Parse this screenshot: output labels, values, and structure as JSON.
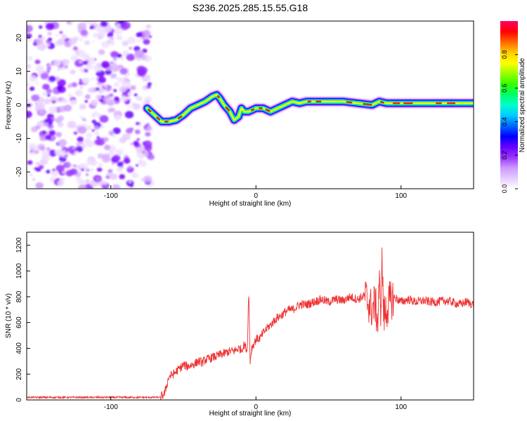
{
  "title": "S236.2025.285.15.55.G18",
  "chart_data": [
    {
      "type": "heatmap",
      "xlabel": "Height of straight line (km)",
      "ylabel": "Frequency (Hz)",
      "xlim": [
        -158,
        150
      ],
      "ylim": [
        -25,
        25
      ],
      "xticks": [
        -100,
        0,
        100
      ],
      "yticks": [
        -20,
        -10,
        0,
        10,
        20
      ],
      "colorbar": {
        "label": "Normalized spectral amplitude",
        "range": [
          0,
          1
        ],
        "ticks": [
          "0.0",
          "0.2",
          "0.4",
          "0.6",
          "0.8"
        ],
        "colors": [
          "#ffffff",
          "#e6ccff",
          "#cc99ff",
          "#9933ff",
          "#6600ff",
          "#0000ff",
          "#0066ff",
          "#00ccff",
          "#00ffcc",
          "#00ff66",
          "#33ff00",
          "#99ff00",
          "#ffff00",
          "#ffcc00",
          "#ff6600",
          "#ff0000",
          "#ff0066"
        ]
      },
      "ridge": {
        "x": [
          -75,
          -70,
          -65,
          -60,
          -55,
          -50,
          -45,
          -40,
          -35,
          -30,
          -27,
          -25,
          -22,
          -18,
          -15,
          -12,
          -10,
          -8,
          -5,
          0,
          5,
          10,
          15,
          20,
          25,
          30,
          35,
          40,
          45,
          50,
          60,
          70,
          80,
          85,
          90,
          100,
          110,
          120,
          130,
          140,
          150
        ],
        "y": [
          -1,
          -3,
          -5,
          -5,
          -4.5,
          -3,
          -1,
          0,
          1,
          2.5,
          3,
          2,
          0,
          -2,
          -4.5,
          -3.5,
          -1,
          -2,
          -2,
          -1,
          -1,
          -2,
          -1,
          0,
          1,
          0.5,
          1,
          1,
          1,
          1,
          1,
          0.5,
          0,
          1,
          0.5,
          0.5,
          0.5,
          0.5,
          0.5,
          0.5,
          0.5
        ]
      },
      "noise_region_x": [
        -158,
        -72
      ]
    },
    {
      "type": "line",
      "xlabel": "Height of straight line (km)",
      "ylabel": "SNR (10 * v/v)",
      "xlim": [
        -158,
        150
      ],
      "ylim": [
        0,
        1300
      ],
      "xticks": [
        -100,
        0,
        100
      ],
      "yticks": [
        0,
        200,
        400,
        600,
        800,
        1000,
        1200
      ],
      "color": "#ee3333",
      "x": [
        -158,
        -140,
        -120,
        -100,
        -80,
        -66,
        -63,
        -60,
        -57,
        -55,
        -53,
        -52,
        -50,
        -47,
        -45,
        -42,
        -40,
        -37,
        -35,
        -32,
        -30,
        -27,
        -25,
        -22,
        -20,
        -17,
        -15,
        -12,
        -10,
        -8,
        -6,
        -5,
        -4,
        -3,
        0,
        3,
        5,
        8,
        10,
        13,
        15,
        18,
        20,
        23,
        25,
        28,
        30,
        35,
        40,
        45,
        50,
        55,
        60,
        65,
        70,
        75,
        80,
        82,
        84,
        85,
        86,
        87,
        88,
        90,
        92,
        95,
        100,
        105,
        110,
        115,
        120,
        125,
        130,
        135,
        140,
        145,
        150
      ],
      "y": [
        20,
        20,
        20,
        20,
        20,
        20,
        50,
        180,
        200,
        220,
        240,
        250,
        270,
        260,
        270,
        280,
        300,
        290,
        310,
        320,
        330,
        340,
        350,
        360,
        370,
        380,
        380,
        400,
        390,
        430,
        380,
        860,
        300,
        400,
        470,
        480,
        520,
        560,
        580,
        620,
        640,
        660,
        680,
        700,
        700,
        720,
        740,
        740,
        760,
        780,
        760,
        780,
        770,
        800,
        780,
        810,
        700,
        760,
        600,
        900,
        700,
        1100,
        650,
        700,
        760,
        800,
        760,
        780,
        760,
        770,
        760,
        760,
        770,
        760,
        740,
        760,
        740
      ]
    }
  ]
}
